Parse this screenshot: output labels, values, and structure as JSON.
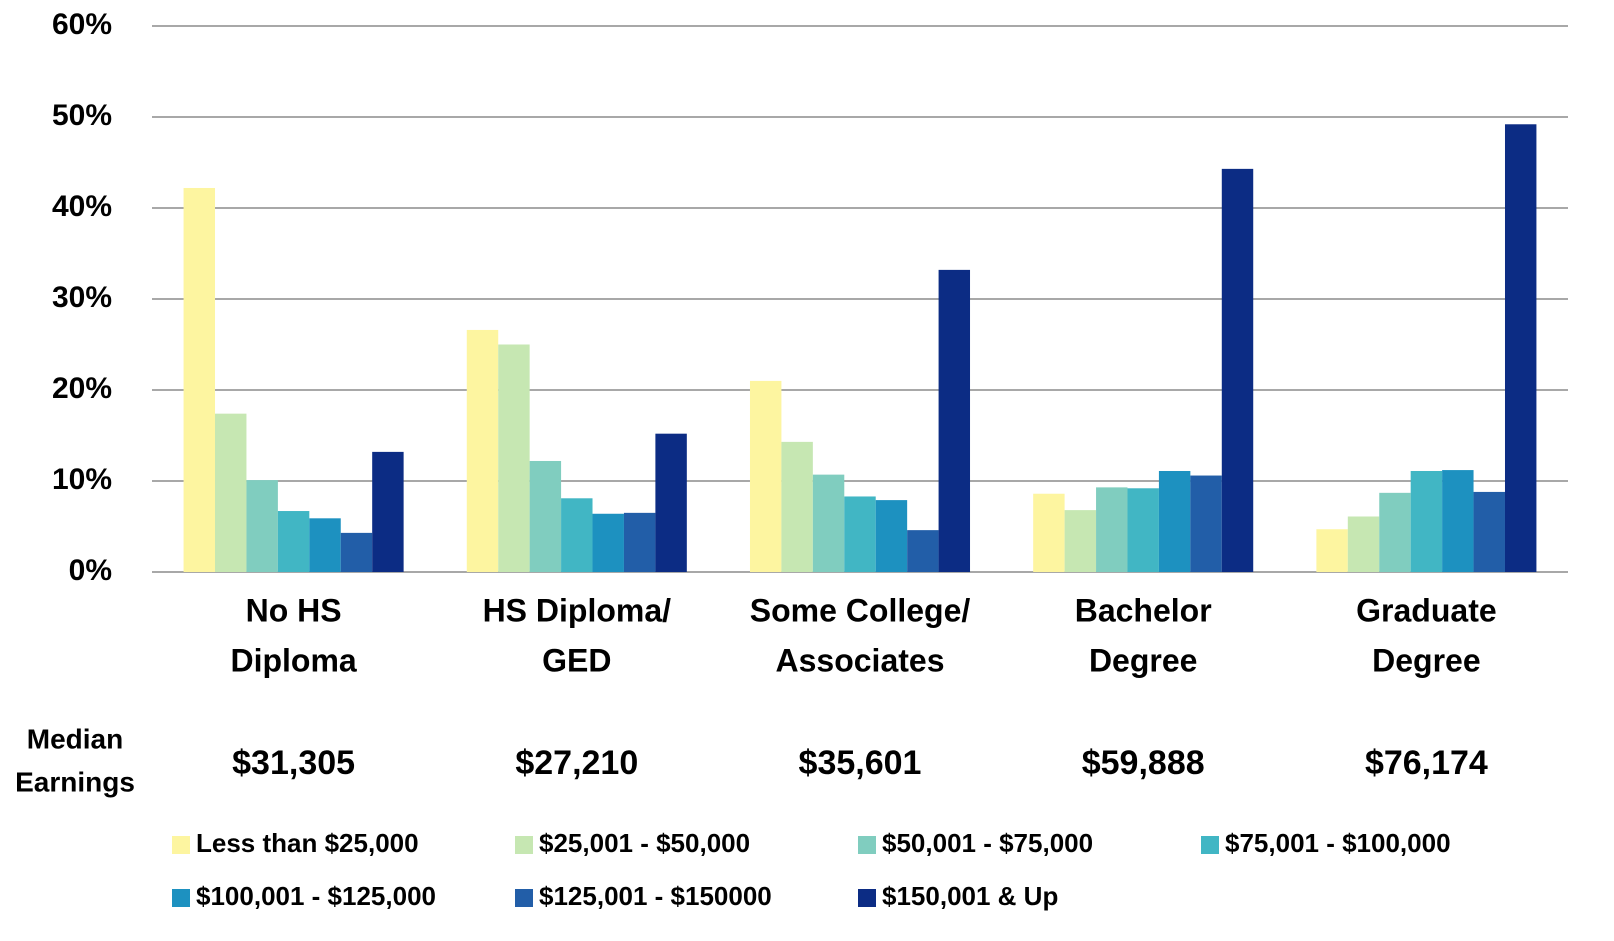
{
  "chart_data": {
    "type": "bar",
    "categories": [
      [
        "No HS",
        "Diploma"
      ],
      [
        "HS Diploma/",
        "GED"
      ],
      [
        "Some College/",
        "Associates"
      ],
      [
        "Bachelor",
        "Degree"
      ],
      [
        "Graduate",
        "Degree"
      ]
    ],
    "series": [
      {
        "name": "Less than $25,000",
        "color": "#fdf5a0",
        "values": [
          42.2,
          26.6,
          21.0,
          8.6,
          4.7
        ]
      },
      {
        "name": "$25,001 - $50,000",
        "color": "#c6e7b2",
        "values": [
          17.4,
          25.0,
          14.3,
          6.8,
          6.1
        ]
      },
      {
        "name": "$50,001 - $75,000",
        "color": "#80cdbf",
        "values": [
          10.1,
          12.2,
          10.7,
          9.3,
          8.7
        ]
      },
      {
        "name": "$75,001 - $100,000",
        "color": "#41b6c4",
        "values": [
          6.7,
          8.1,
          8.3,
          9.2,
          11.1
        ]
      },
      {
        "name": "$100,001 - $125,000",
        "color": "#1d91c0",
        "values": [
          5.9,
          6.4,
          7.9,
          11.1,
          11.2
        ]
      },
      {
        "name": "$125,001 - $150000",
        "color": "#225ea8",
        "values": [
          4.3,
          6.5,
          4.6,
          10.6,
          8.8
        ]
      },
      {
        "name": "$150,001 & Up",
        "color": "#0c2c84",
        "values": [
          13.2,
          15.2,
          33.2,
          44.3,
          49.2
        ]
      }
    ],
    "ylim": [
      0,
      60
    ],
    "yticks": [
      {
        "value": 0,
        "label": "0%"
      },
      {
        "value": 10,
        "label": "10%"
      },
      {
        "value": 20,
        "label": "20%"
      },
      {
        "value": 30,
        "label": "30%"
      },
      {
        "value": 40,
        "label": "40%"
      },
      {
        "value": 50,
        "label": "50%"
      },
      {
        "value": 60,
        "label": "60%"
      }
    ],
    "grid": true,
    "legend": "bottom",
    "median_earnings": {
      "label": [
        "Median",
        "Earnings"
      ],
      "values": [
        31305,
        27210,
        35601,
        59888,
        76174
      ],
      "value_labels": [
        "$31,305",
        "$27,210",
        "$35,601",
        "$59,888",
        "$76,174"
      ]
    }
  }
}
